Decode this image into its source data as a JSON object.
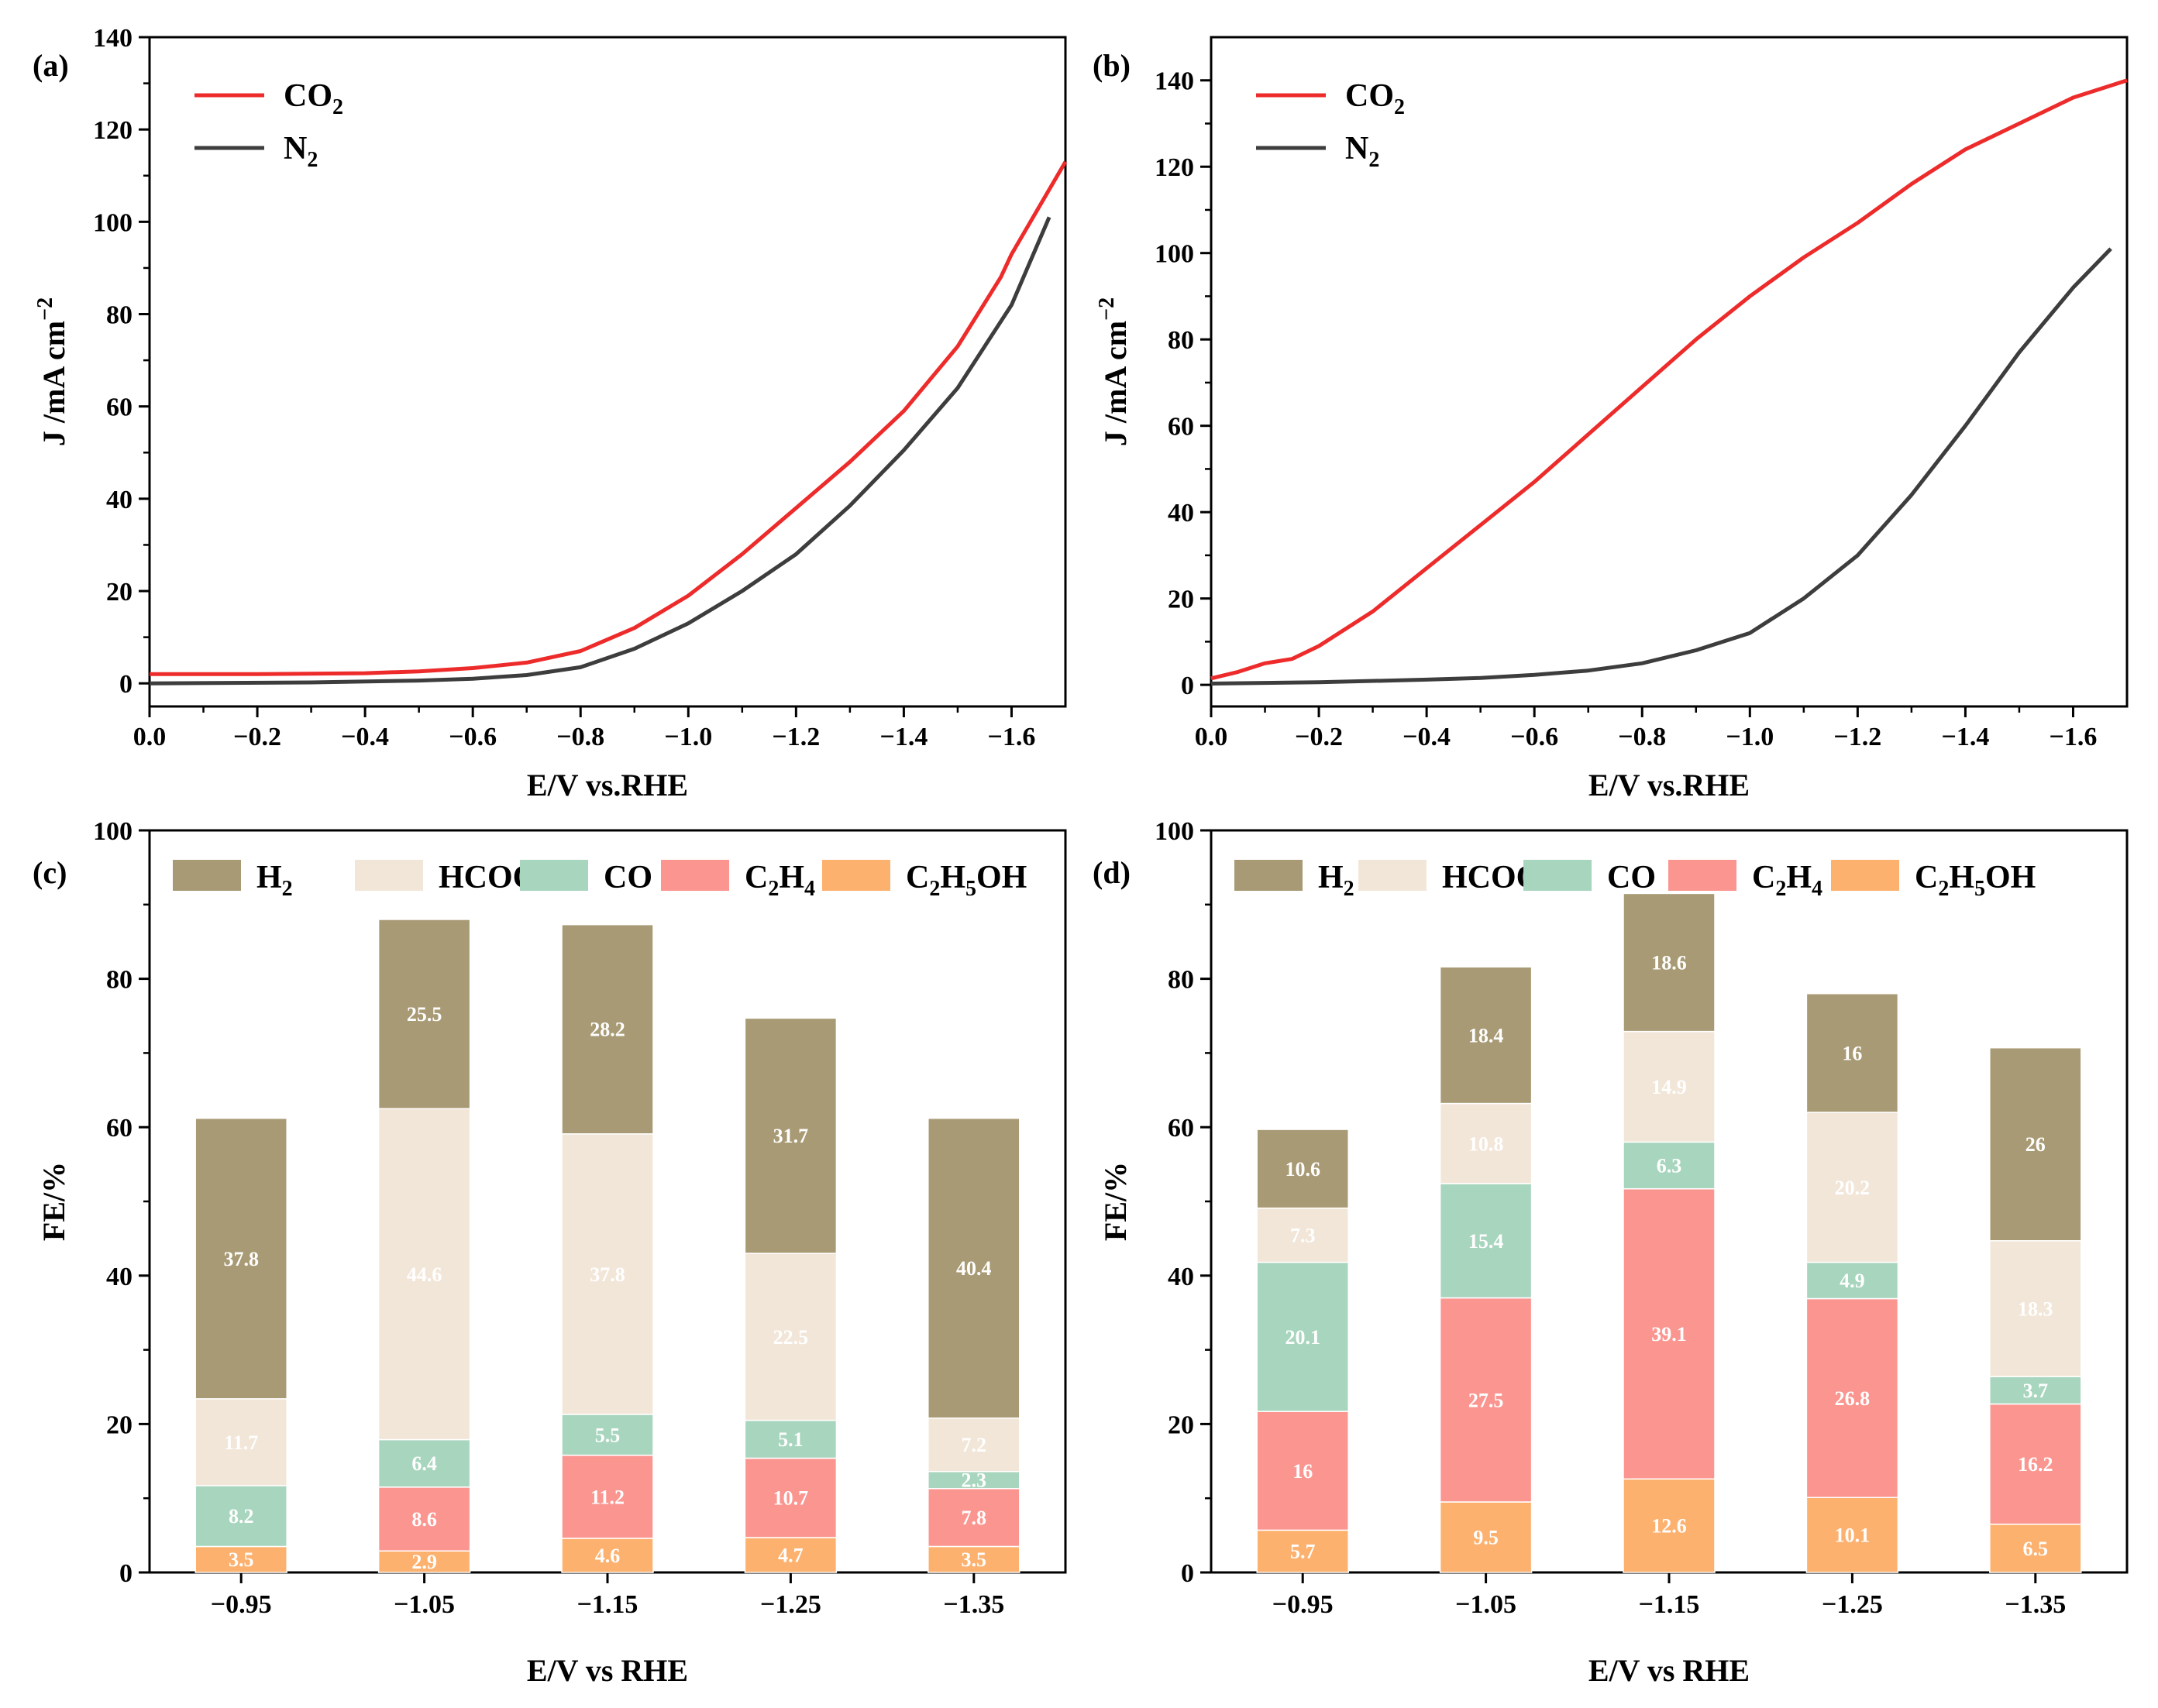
{
  "colors": {
    "co2": "#ee2b2b",
    "n2": "#3d3d3d",
    "H2": "#a89a74",
    "HCOOH": "#f2e6d8",
    "CO": "#a8d5be",
    "C2H4": "#fb9590",
    "C2H5OH": "#fdb16f"
  },
  "chart_data": [
    {
      "panel": "(a)",
      "type": "line",
      "xlabel": "E/V vs.RHE",
      "ylabel": {
        "main": "J /mA cm",
        "sup": "−2"
      },
      "xlim": [
        0.0,
        -1.7
      ],
      "ylim": [
        -5,
        140
      ],
      "xticks": [
        "0.0",
        "−0.2",
        "−0.4",
        "−0.6",
        "−0.8",
        "−1.0",
        "−1.2",
        "−1.4",
        "−1.6"
      ],
      "yticks": [
        "0",
        "20",
        "40",
        "60",
        "80",
        "100",
        "120",
        "140"
      ],
      "legend": [
        {
          "main": "CO",
          "sub": "2"
        },
        {
          "main": "N",
          "sub": "2"
        }
      ],
      "series": [
        {
          "name": "CO2",
          "points": [
            [
              0,
              2
            ],
            [
              -0.2,
              2
            ],
            [
              -0.4,
              2.2
            ],
            [
              -0.5,
              2.6
            ],
            [
              -0.6,
              3.3
            ],
            [
              -0.7,
              4.5
            ],
            [
              -0.8,
              7
            ],
            [
              -0.9,
              12
            ],
            [
              -1.0,
              19
            ],
            [
              -1.1,
              28
            ],
            [
              -1.2,
              38
            ],
            [
              -1.3,
              48
            ],
            [
              -1.4,
              59
            ],
            [
              -1.5,
              73
            ],
            [
              -1.58,
              88
            ],
            [
              -1.6,
              93
            ],
            [
              -1.65,
              103
            ],
            [
              -1.7,
              113
            ]
          ]
        },
        {
          "name": "N2",
          "points": [
            [
              0,
              0
            ],
            [
              -0.3,
              0.2
            ],
            [
              -0.5,
              0.6
            ],
            [
              -0.6,
              1
            ],
            [
              -0.7,
              1.8
            ],
            [
              -0.8,
              3.5
            ],
            [
              -0.9,
              7.5
            ],
            [
              -1.0,
              13
            ],
            [
              -1.1,
              20
            ],
            [
              -1.2,
              28
            ],
            [
              -1.3,
              38.5
            ],
            [
              -1.4,
              50.5
            ],
            [
              -1.5,
              64
            ],
            [
              -1.6,
              82
            ],
            [
              -1.67,
              101
            ]
          ]
        }
      ]
    },
    {
      "panel": "(b)",
      "type": "line",
      "xlabel": "E/V vs.RHE",
      "ylabel": {
        "main": "J /mA cm",
        "sup": "−2"
      },
      "xlim": [
        0.0,
        -1.7
      ],
      "ylim": [
        -5,
        150
      ],
      "xticks": [
        "0.0",
        "−0.2",
        "−0.4",
        "−0.6",
        "−0.8",
        "−1.0",
        "−1.2",
        "−1.4",
        "−1.6"
      ],
      "yticks": [
        "0",
        "20",
        "40",
        "60",
        "80",
        "100",
        "120",
        "140"
      ],
      "legend": [
        {
          "main": "CO",
          "sub": "2"
        },
        {
          "main": "N",
          "sub": "2"
        }
      ],
      "series": [
        {
          "name": "CO2",
          "points": [
            [
              0,
              1.5
            ],
            [
              -0.05,
              3
            ],
            [
              -0.1,
              5
            ],
            [
              -0.15,
              6
            ],
            [
              -0.2,
              9
            ],
            [
              -0.3,
              17
            ],
            [
              -0.4,
              27
            ],
            [
              -0.5,
              37
            ],
            [
              -0.6,
              47
            ],
            [
              -0.7,
              58
            ],
            [
              -0.8,
              69
            ],
            [
              -0.9,
              80
            ],
            [
              -1.0,
              90
            ],
            [
              -1.1,
              99
            ],
            [
              -1.2,
              107
            ],
            [
              -1.3,
              116
            ],
            [
              -1.4,
              124
            ],
            [
              -1.5,
              130
            ],
            [
              -1.6,
              136
            ],
            [
              -1.7,
              140
            ]
          ]
        },
        {
          "name": "N2",
          "points": [
            [
              0,
              0.3
            ],
            [
              -0.2,
              0.6
            ],
            [
              -0.4,
              1.2
            ],
            [
              -0.5,
              1.6
            ],
            [
              -0.6,
              2.3
            ],
            [
              -0.7,
              3.3
            ],
            [
              -0.8,
              5
            ],
            [
              -0.9,
              8
            ],
            [
              -1.0,
              12
            ],
            [
              -1.1,
              20
            ],
            [
              -1.2,
              30
            ],
            [
              -1.3,
              44
            ],
            [
              -1.4,
              60
            ],
            [
              -1.5,
              77
            ],
            [
              -1.6,
              92
            ],
            [
              -1.67,
              101
            ]
          ]
        }
      ]
    },
    {
      "panel": "(c)",
      "type": "stacked-bar",
      "xlabel": "E/V vs RHE",
      "ylabel": "FE/%",
      "ylim": [
        0,
        100
      ],
      "yticks": [
        "0",
        "20",
        "40",
        "60",
        "80",
        "100"
      ],
      "categories": [
        "−0.95",
        "−1.05",
        "−1.15",
        "−1.25",
        "−1.35"
      ],
      "legend": [
        {
          "key": "H2",
          "main": "H",
          "sub": "2",
          "tail": ""
        },
        {
          "key": "HCOOH",
          "main": "HCOOH",
          "sub": "",
          "tail": ""
        },
        {
          "key": "CO",
          "main": "CO",
          "sub": "",
          "tail": ""
        },
        {
          "key": "C2H4",
          "main": "C",
          "sub": "2",
          "tail": "H",
          "sub2": "4"
        },
        {
          "key": "C2H5OH",
          "main": "C",
          "sub": "2",
          "tail": "H",
          "sub2": "5",
          "tail2": "OH"
        }
      ],
      "series": [
        {
          "name": "C2H5OH",
          "values": [
            3.5,
            2.9,
            4.6,
            4.7,
            3.5
          ]
        },
        {
          "name": "C2H4",
          "values": [
            0,
            8.6,
            11.2,
            10.7,
            7.8
          ]
        },
        {
          "name": "CO",
          "values": [
            8.2,
            6.4,
            5.5,
            5.1,
            2.3
          ]
        },
        {
          "name": "HCOOH",
          "values": [
            11.7,
            44.6,
            37.8,
            22.5,
            7.2
          ]
        },
        {
          "name": "H2",
          "values": [
            37.8,
            25.5,
            28.2,
            31.7,
            40.4
          ]
        }
      ]
    },
    {
      "panel": "(d)",
      "type": "stacked-bar",
      "xlabel": "E/V vs RHE",
      "ylabel": "FE/%",
      "ylim": [
        0,
        100
      ],
      "yticks": [
        "0",
        "20",
        "40",
        "60",
        "80",
        "100"
      ],
      "categories": [
        "−0.95",
        "−1.05",
        "−1.15",
        "−1.25",
        "−1.35"
      ],
      "legend": [
        {
          "key": "H2",
          "main": "H",
          "sub": "2",
          "tail": ""
        },
        {
          "key": "HCOOH",
          "main": "HCOOH",
          "sub": "",
          "tail": ""
        },
        {
          "key": "CO",
          "main": "CO",
          "sub": "",
          "tail": ""
        },
        {
          "key": "C2H4",
          "main": "C",
          "sub": "2",
          "tail": "H",
          "sub2": "4"
        },
        {
          "key": "C2H5OH",
          "main": "C",
          "sub": "2",
          "tail": "H",
          "sub2": "5",
          "tail2": "OH"
        }
      ],
      "series": [
        {
          "name": "C2H5OH",
          "values": [
            5.7,
            9.5,
            12.6,
            10.1,
            6.5
          ]
        },
        {
          "name": "C2H4",
          "values": [
            16,
            27.5,
            39.1,
            26.8,
            16.2
          ]
        },
        {
          "name": "CO",
          "values": [
            20.1,
            15.4,
            6.3,
            4.9,
            3.7
          ]
        },
        {
          "name": "HCOOH",
          "values": [
            7.3,
            10.8,
            14.9,
            20.2,
            18.3
          ]
        },
        {
          "name": "H2",
          "values": [
            10.6,
            18.4,
            18.6,
            16,
            26
          ]
        }
      ]
    }
  ]
}
